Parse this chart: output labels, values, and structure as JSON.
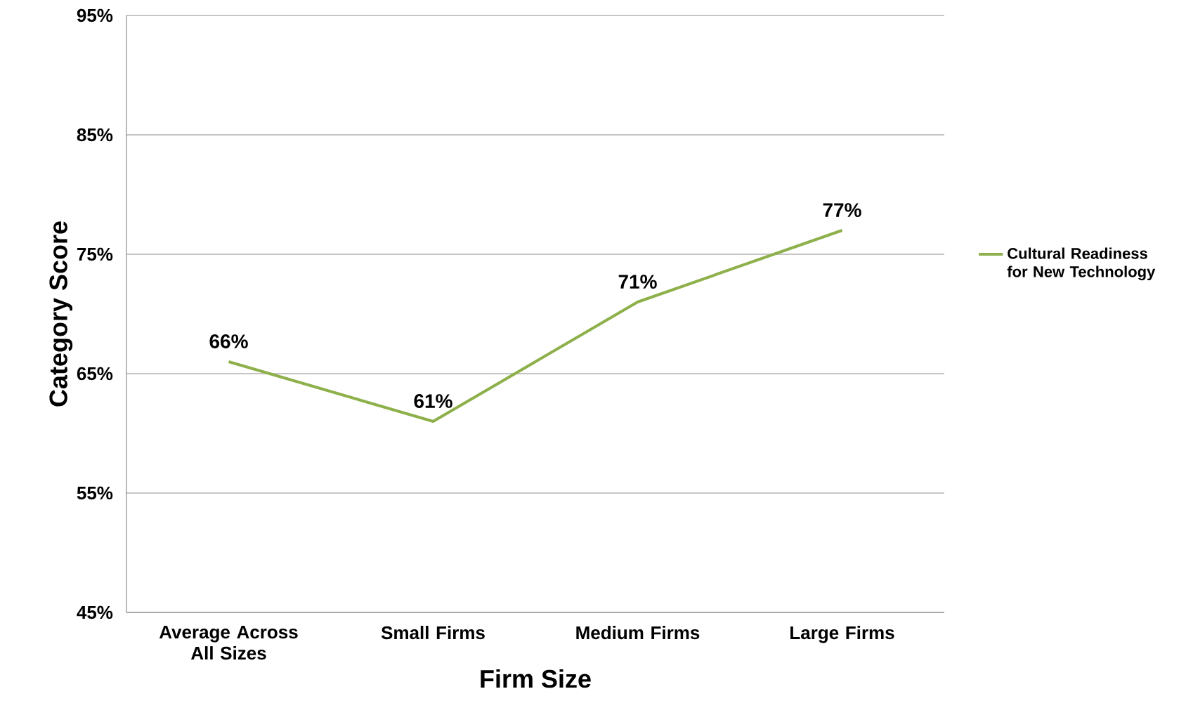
{
  "chart_data": {
    "type": "line",
    "xlabel": "Firm Size",
    "ylabel": "Category Score",
    "categories": [
      "Average Across All Sizes",
      "Small Firms",
      "Medium Firms",
      "Large Firms"
    ],
    "series": [
      {
        "name": "Cultural Readiness for New Technology",
        "color": "#8db04a",
        "values": [
          66,
          61,
          71,
          77
        ],
        "value_labels": [
          "66%",
          "61%",
          "71%",
          "77%"
        ]
      }
    ],
    "ylim": [
      45,
      95
    ],
    "yticks": [
      {
        "value": 45,
        "label": "45%"
      },
      {
        "value": 55,
        "label": "55%"
      },
      {
        "value": 65,
        "label": "65%"
      },
      {
        "value": 75,
        "label": "75%"
      },
      {
        "value": 85,
        "label": "85%"
      },
      {
        "value": 95,
        "label": "95%"
      }
    ],
    "grid": "y",
    "legend": "right",
    "marker": "none",
    "line_style": "solid"
  }
}
